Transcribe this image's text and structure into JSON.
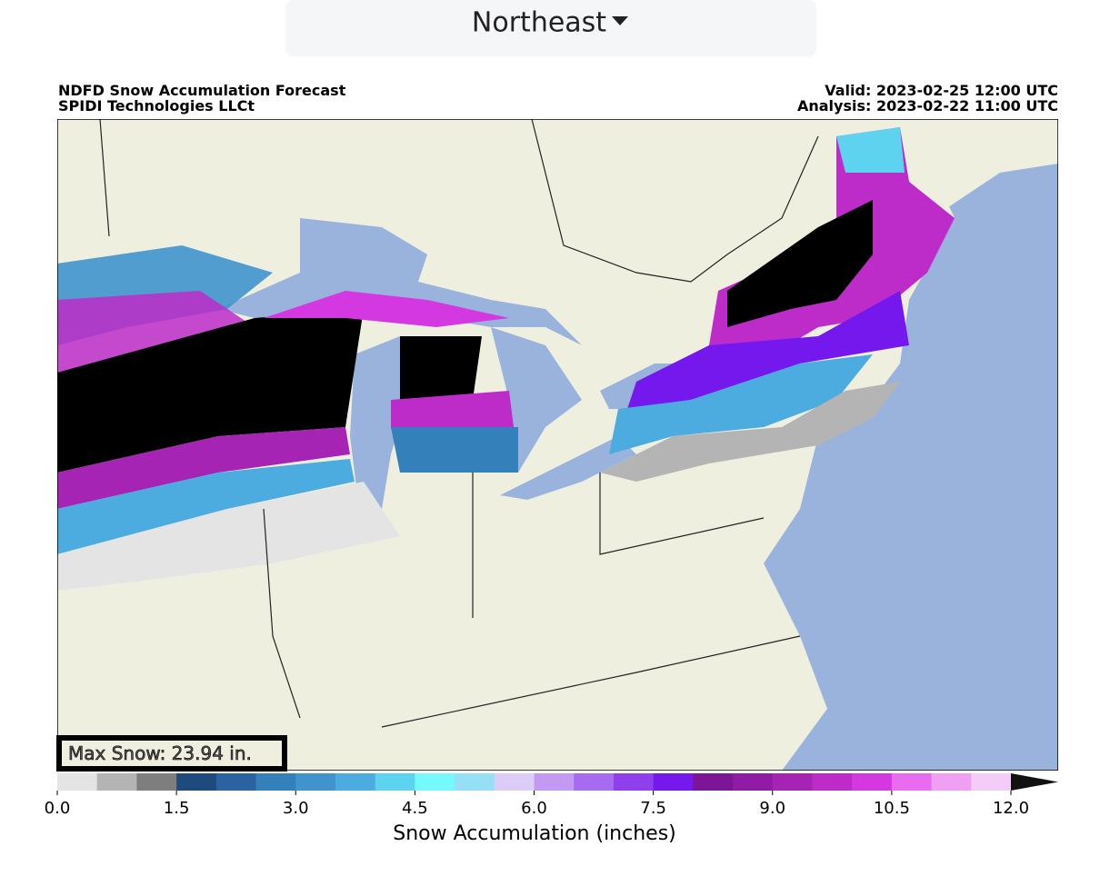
{
  "dropdown": {
    "label": "Northeast"
  },
  "map": {
    "title_left": [
      "NDFD Snow Accumulation Forecast",
      "SPIDI Technologies LLCt"
    ],
    "title_right": [
      "Valid: 2023-02-25 12:00 UTC",
      "Analysis: 2023-02-22 11:00 UTC"
    ],
    "max_snow": "Max Snow: 23.94 in."
  },
  "colorbar": {
    "label": "Snow Accumulation (inches)",
    "lim": [
      0,
      12
    ],
    "ticks": [
      {
        "value": 0,
        "label": "0.0"
      },
      {
        "value": 1.5,
        "label": "1.5"
      },
      {
        "value": 3,
        "label": "3.0"
      },
      {
        "value": 4.5,
        "label": "4.5"
      },
      {
        "value": 6,
        "label": "6.0"
      },
      {
        "value": 7.5,
        "label": "7.5"
      },
      {
        "value": 9,
        "label": "9.0"
      },
      {
        "value": 10.5,
        "label": "10.5"
      },
      {
        "value": 12,
        "label": "12.0"
      }
    ],
    "colors": [
      "#e4e4e4",
      "#b4b4b4",
      "#7e7e7e",
      "#1f4a7e",
      "#2a63a0",
      "#3480bb",
      "#4093cd",
      "#4cabdf",
      "#5ed3f0",
      "#74fafb",
      "#96e0f6",
      "#dcccf8",
      "#c39af3",
      "#a66cf0",
      "#8f40ec",
      "#7418ee",
      "#7c1696",
      "#901ba4",
      "#a624b4",
      "#bd2cc8",
      "#d438e0",
      "#e96cf0",
      "#f0a0f2",
      "#f4ccf8"
    ],
    "extend_color": "#111111"
  }
}
